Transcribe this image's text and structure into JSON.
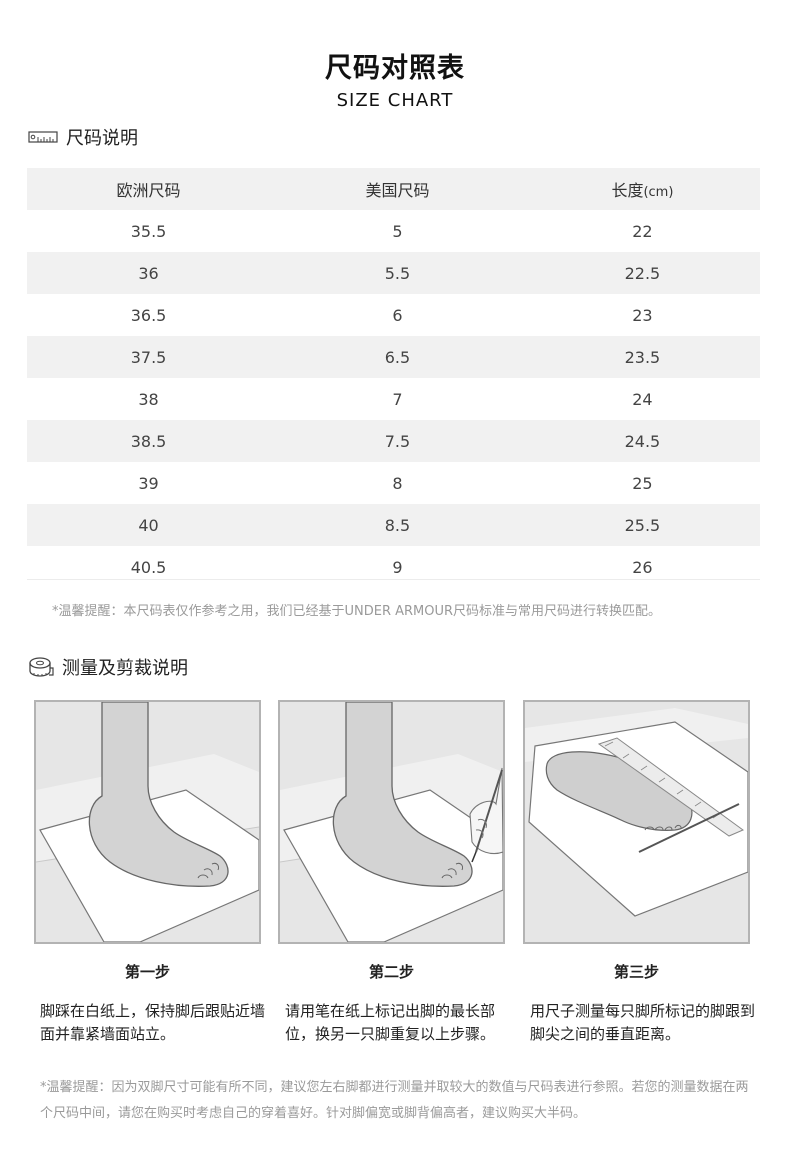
{
  "header": {
    "title": "尺码对照表",
    "subtitle": "SIZE CHART"
  },
  "size_section": {
    "heading": "尺码说明",
    "icon": "ruler-icon",
    "columns": [
      "欧洲尺码",
      "美国尺码",
      "长度"
    ],
    "length_unit": "(cm)",
    "rows": [
      [
        "35.5",
        "5",
        "22"
      ],
      [
        "36",
        "5.5",
        "22.5"
      ],
      [
        "36.5",
        "6",
        "23"
      ],
      [
        "37.5",
        "6.5",
        "23.5"
      ],
      [
        "38",
        "7",
        "24"
      ],
      [
        "38.5",
        "7.5",
        "24.5"
      ],
      [
        "39",
        "8",
        "25"
      ],
      [
        "40",
        "8.5",
        "25.5"
      ],
      [
        "40.5",
        "9",
        "26"
      ]
    ],
    "note": "*温馨提醒：本尺码表仅作参考之用，我们已经基于UNDER ARMOUR尺码标准与常用尺码进行转换匹配。"
  },
  "measure_section": {
    "heading": "测量及剪裁说明",
    "icon": "tape-measure-icon",
    "steps": [
      {
        "title": "第一步",
        "desc": "脚踩在白纸上，保持脚后跟贴近墙面并靠紧墙面站立。"
      },
      {
        "title": "第二步",
        "desc": "请用笔在纸上标记出脚的最长部位，换另一只脚重复以上步骤。"
      },
      {
        "title": "第三步",
        "desc": "用尺子测量每只脚所标记的脚跟到脚尖之间的垂直距离。"
      }
    ],
    "note": "*温馨提醒：因为双脚尺寸可能有所不同，建议您左右脚都进行测量并取较大的数值与尺码表进行参照。若您的测量数据在两个尺码中间，请您在购买时考虑自己的穿着喜好。针对脚偏宽或脚背偏高者，建议购买大半码。"
  }
}
